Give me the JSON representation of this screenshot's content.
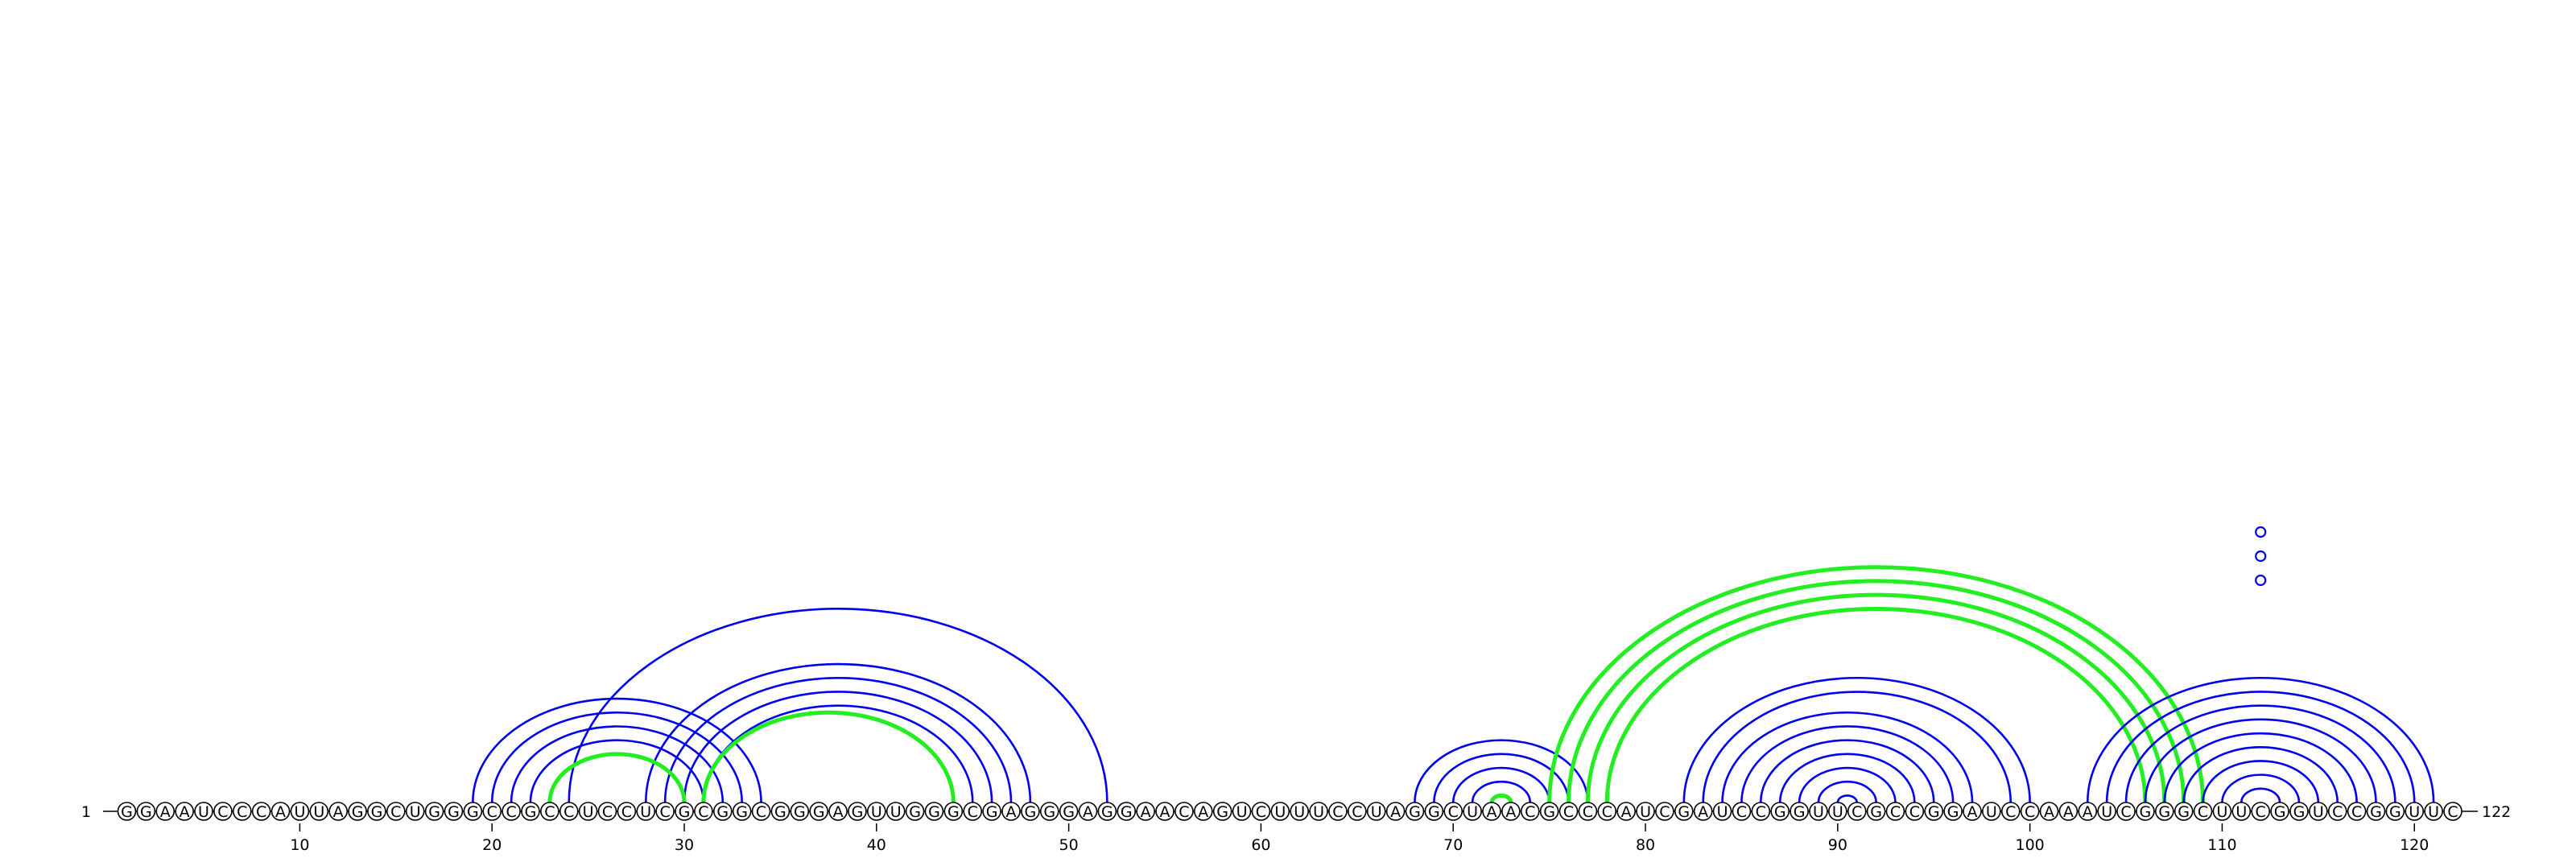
{
  "sequence": "GGAAUCCCAUUAGGCUGGGCCGCCUCCUCGCGGCGGGAGUUGGGCGAGGGAGGAACAGUCUUUCCUAGGCUAACGCCCAUCGAUCCGGUUCGCCGGAUCCAAAUCGGGCUUCGGUCCGGUUC",
  "start_label": "1",
  "end_label": "122",
  "ticks": [
    10,
    20,
    30,
    40,
    50,
    60,
    70,
    80,
    90,
    100,
    110,
    120
  ],
  "colors": {
    "blue": "#0000ee",
    "green": "#22ee22"
  },
  "arc_groups": [
    {
      "color": "blue",
      "pairs": [
        [
          19,
          34
        ],
        [
          20,
          33
        ],
        [
          21,
          32
        ],
        [
          22,
          31
        ],
        [
          23,
          30
        ]
      ]
    },
    {
      "color": "blue",
      "pairs": [
        [
          24,
          52
        ],
        [
          28,
          48
        ],
        [
          29,
          47
        ],
        [
          30,
          46
        ],
        [
          31,
          45
        ]
      ]
    },
    {
      "color": "green",
      "pairs": [
        [
          23,
          30
        ],
        [
          31,
          44
        ]
      ]
    },
    {
      "color": "blue",
      "pairs": [
        [
          68,
          77
        ],
        [
          69,
          76
        ],
        [
          70,
          75
        ],
        [
          71,
          74
        ]
      ]
    },
    {
      "color": "green",
      "pairs": [
        [
          72,
          73
        ]
      ]
    },
    {
      "color": "green",
      "pairs": [
        [
          75,
          109
        ],
        [
          76,
          108
        ],
        [
          77,
          107
        ],
        [
          78,
          106
        ]
      ]
    },
    {
      "color": "blue",
      "pairs": [
        [
          82,
          100
        ],
        [
          83,
          99
        ],
        [
          84,
          97
        ],
        [
          85,
          96
        ],
        [
          86,
          95
        ],
        [
          87,
          94
        ],
        [
          88,
          93
        ],
        [
          89,
          92
        ],
        [
          90,
          91
        ]
      ]
    },
    {
      "color": "blue",
      "pairs": [
        [
          103,
          121
        ],
        [
          104,
          120
        ],
        [
          105,
          119
        ],
        [
          106,
          118
        ],
        [
          107,
          117
        ],
        [
          108,
          116
        ],
        [
          109,
          115
        ],
        [
          110,
          114
        ],
        [
          111,
          113
        ],
        [
          112,
          112
        ],
        [
          112,
          112
        ],
        [
          112,
          112
        ]
      ]
    }
  ]
}
